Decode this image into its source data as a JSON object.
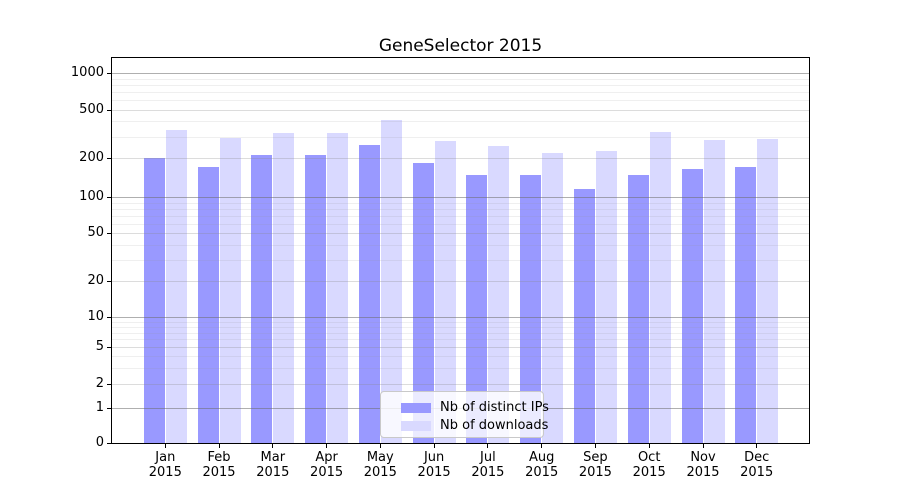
{
  "chart_data": {
    "type": "bar",
    "title": "GeneSelector 2015",
    "categories": [
      "Jan",
      "Feb",
      "Mar",
      "Apr",
      "May",
      "Jun",
      "Jul",
      "Aug",
      "Sep",
      "Oct",
      "Nov",
      "Dec"
    ],
    "x_sub_label": "2015",
    "series": [
      {
        "name": "Nb of distinct IPs",
        "color": "#9999ff",
        "values": [
          200,
          170,
          213,
          214,
          255,
          185,
          150,
          150,
          116,
          150,
          165,
          170
        ]
      },
      {
        "name": "Nb of downloads",
        "color": "#d9d9ff",
        "values": [
          340,
          295,
          320,
          320,
          410,
          275,
          250,
          220,
          230,
          330,
          280,
          285
        ]
      }
    ],
    "xlabel": "",
    "ylabel": "",
    "y_ticks": [
      0,
      1,
      2,
      5,
      10,
      20,
      50,
      100,
      200,
      500,
      1000
    ],
    "y_scale": "pseudo-log (log above ~1, compressed linear near 0)",
    "ylim": [
      0,
      1300
    ],
    "grid": "major, mid and minor horizontal gridlines drawn over the bars",
    "legend_position": "inside plot, lower center",
    "bar_group": "pairs per month, distinct-IPs bar left, downloads bar right"
  }
}
